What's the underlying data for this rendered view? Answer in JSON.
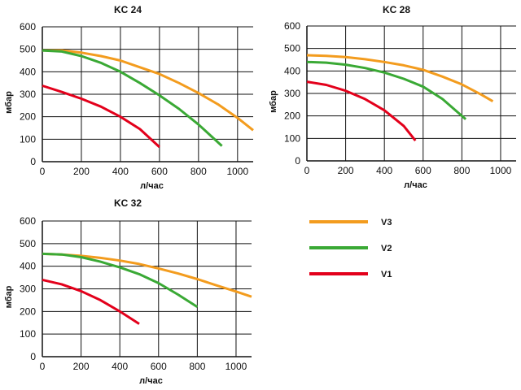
{
  "series_colors": {
    "V3": "#f39c1e",
    "V2": "#3aa935",
    "V1": "#e3001b"
  },
  "legend": [
    {
      "name": "V3",
      "color": "#f39c1e"
    },
    {
      "name": "V2",
      "color": "#3aa935"
    },
    {
      "name": "V1",
      "color": "#e3001b"
    }
  ],
  "chart_data": [
    {
      "type": "line",
      "title": "KC 24",
      "xlabel": "л/час",
      "ylabel": "мбар",
      "xlim": [
        0,
        1080
      ],
      "ylim": [
        0,
        600
      ],
      "x_ticks": [
        "0",
        "200",
        "400",
        "600",
        "800",
        "1000"
      ],
      "y_ticks": [
        "0",
        "100",
        "200",
        "300",
        "400",
        "500",
        "600"
      ],
      "grid": true,
      "series": [
        {
          "name": "V3",
          "x": [
            0,
            100,
            200,
            300,
            400,
            500,
            600,
            700,
            800,
            900,
            1000,
            1080
          ],
          "y": [
            495,
            495,
            485,
            470,
            450,
            420,
            390,
            350,
            305,
            255,
            195,
            140
          ]
        },
        {
          "name": "V2",
          "x": [
            0,
            100,
            200,
            300,
            400,
            500,
            600,
            700,
            800,
            920
          ],
          "y": [
            495,
            490,
            470,
            440,
            400,
            350,
            295,
            235,
            165,
            70
          ]
        },
        {
          "name": "V1",
          "x": [
            0,
            100,
            200,
            300,
            400,
            500,
            600
          ],
          "y": [
            338,
            310,
            280,
            245,
            200,
            145,
            65
          ]
        }
      ]
    },
    {
      "type": "line",
      "title": "KC 28",
      "xlabel": "л/час",
      "ylabel": "мбар",
      "xlim": [
        0,
        1080
      ],
      "ylim": [
        0,
        600
      ],
      "x_ticks": [
        "0",
        "200",
        "400",
        "600",
        "800",
        "1000"
      ],
      "y_ticks": [
        "0",
        "100",
        "200",
        "300",
        "400",
        "500",
        "600"
      ],
      "grid": true,
      "series": [
        {
          "name": "V3",
          "x": [
            0,
            100,
            200,
            300,
            400,
            500,
            600,
            700,
            800,
            900,
            960
          ],
          "y": [
            470,
            467,
            462,
            452,
            440,
            425,
            405,
            375,
            340,
            295,
            265
          ]
        },
        {
          "name": "V2",
          "x": [
            0,
            100,
            200,
            300,
            400,
            500,
            600,
            700,
            820
          ],
          "y": [
            440,
            437,
            428,
            413,
            393,
            365,
            330,
            275,
            185
          ]
        },
        {
          "name": "V1",
          "x": [
            0,
            100,
            200,
            300,
            400,
            500,
            560
          ],
          "y": [
            352,
            338,
            312,
            275,
            225,
            155,
            90
          ]
        }
      ]
    },
    {
      "type": "line",
      "title": "KC 32",
      "xlabel": "л/час",
      "ylabel": "мбар",
      "xlim": [
        0,
        1080
      ],
      "ylim": [
        0,
        600
      ],
      "x_ticks": [
        "0",
        "200",
        "400",
        "600",
        "800",
        "1000"
      ],
      "y_ticks": [
        "0",
        "100",
        "200",
        "300",
        "400",
        "500",
        "600"
      ],
      "grid": true,
      "series": [
        {
          "name": "V3",
          "x": [
            0,
            100,
            200,
            300,
            400,
            500,
            600,
            700,
            800,
            900,
            1000,
            1080
          ],
          "y": [
            455,
            452,
            446,
            437,
            425,
            410,
            390,
            368,
            343,
            315,
            288,
            265
          ]
        },
        {
          "name": "V2",
          "x": [
            0,
            100,
            200,
            300,
            400,
            500,
            600,
            700,
            800
          ],
          "y": [
            455,
            452,
            440,
            420,
            395,
            365,
            325,
            275,
            220
          ]
        },
        {
          "name": "V1",
          "x": [
            0,
            100,
            200,
            300,
            400,
            500
          ],
          "y": [
            340,
            320,
            290,
            250,
            200,
            145
          ]
        }
      ]
    }
  ]
}
